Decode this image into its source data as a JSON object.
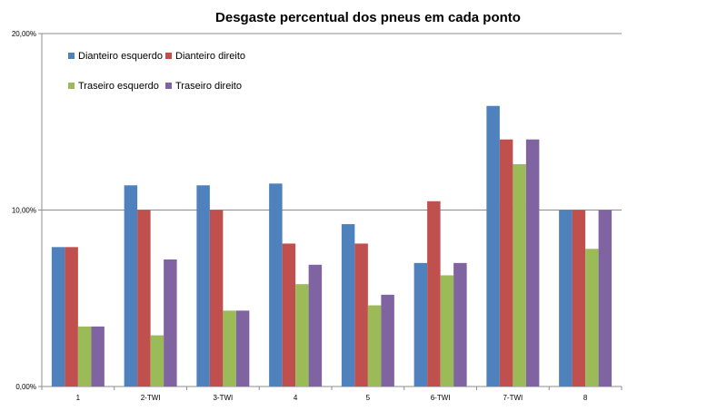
{
  "chart_data": {
    "type": "bar",
    "title": "Desgaste percentual dos pneus em cada ponto",
    "xlabel": "",
    "ylabel": "",
    "categories": [
      "1",
      "2-TWI",
      "3-TWI",
      "4",
      "5",
      "6-TWI",
      "7-TWI",
      "8"
    ],
    "y_ticks": [
      "0,00%",
      "10,00%",
      "20,00%"
    ],
    "ylim": [
      0,
      20
    ],
    "grid": true,
    "legend_position": "top-left",
    "series": [
      {
        "name": "Dianteiro esquerdo",
        "color": "#4F81BD",
        "values": [
          7.9,
          11.4,
          11.4,
          11.5,
          9.2,
          7.0,
          15.9,
          10.0
        ]
      },
      {
        "name": "Dianteiro direito",
        "color": "#C0504D",
        "values": [
          7.9,
          10.0,
          10.0,
          8.1,
          8.1,
          10.5,
          14.0,
          10.0
        ]
      },
      {
        "name": "Traseiro esquerdo",
        "color": "#9BBB59",
        "values": [
          3.4,
          2.9,
          4.3,
          5.8,
          4.6,
          6.3,
          12.6,
          7.8
        ]
      },
      {
        "name": "Traseiro direito",
        "color": "#8064A2",
        "values": [
          3.4,
          7.2,
          4.3,
          6.9,
          5.2,
          7.0,
          14.0,
          10.0
        ]
      }
    ]
  }
}
